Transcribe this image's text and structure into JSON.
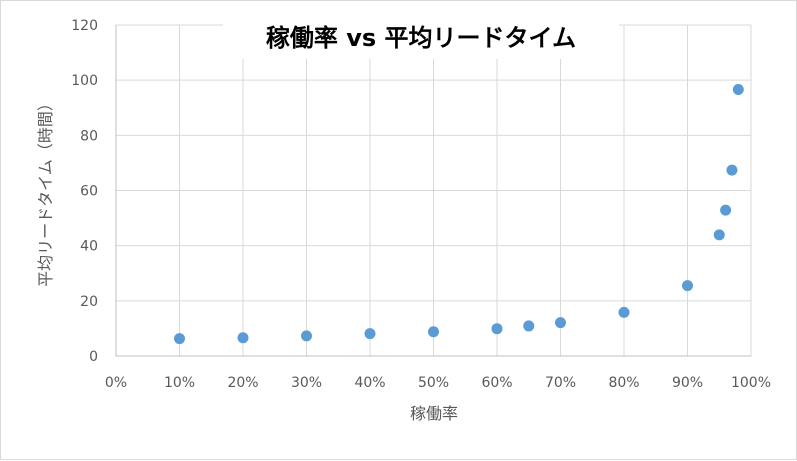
{
  "chart_data": {
    "type": "scatter",
    "title": "稼働率 vs 平均リードタイム",
    "xlabel": "稼働率",
    "ylabel": "平均リードタイム（時間）",
    "xlim": [
      0,
      1.0
    ],
    "ylim": [
      0,
      120
    ],
    "x_ticks": [
      0,
      0.1,
      0.2,
      0.3,
      0.4,
      0.5,
      0.6,
      0.7,
      0.8,
      0.9,
      1.0
    ],
    "x_tick_labels": [
      "0%",
      "10%",
      "20%",
      "30%",
      "40%",
      "50%",
      "60%",
      "70%",
      "80%",
      "90%",
      "100%"
    ],
    "y_ticks": [
      0,
      20,
      40,
      60,
      80,
      100,
      120
    ],
    "y_tick_labels": [
      "0",
      "20",
      "40",
      "60",
      "80",
      "100",
      "120"
    ],
    "grid": true,
    "legend": "none",
    "marker_color": "#5b9bd5",
    "points": [
      {
        "x": 0.1,
        "y": 6.3
      },
      {
        "x": 0.2,
        "y": 6.6
      },
      {
        "x": 0.3,
        "y": 7.3
      },
      {
        "x": 0.4,
        "y": 8.1
      },
      {
        "x": 0.5,
        "y": 8.8
      },
      {
        "x": 0.6,
        "y": 9.9
      },
      {
        "x": 0.65,
        "y": 10.9
      },
      {
        "x": 0.7,
        "y": 12.1
      },
      {
        "x": 0.8,
        "y": 15.8
      },
      {
        "x": 0.9,
        "y": 25.5
      },
      {
        "x": 0.95,
        "y": 43.9
      },
      {
        "x": 0.96,
        "y": 52.9
      },
      {
        "x": 0.97,
        "y": 67.4
      },
      {
        "x": 0.98,
        "y": 96.6
      }
    ]
  }
}
